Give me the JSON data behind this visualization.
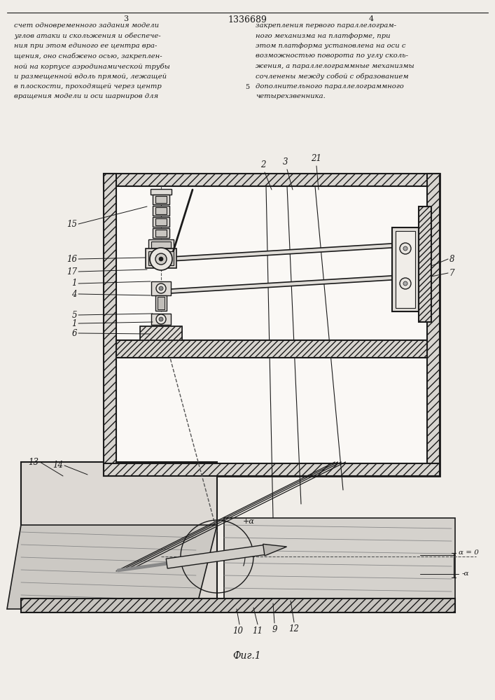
{
  "page_width": 7.07,
  "page_height": 10.0,
  "dpi": 100,
  "bg_color": "#f0ede8",
  "line_color": "#1a1a1a",
  "text_color": "#1a1a1a",
  "patent_number": "1336689",
  "fig_label": "Фиг.1",
  "left_text": [
    "счет одновременного задания модели",
    "углов атаки и скольжения и обеспече-",
    "ния при этом единого ее центра вра-",
    "щения, оно снабжено осью, закреплен-",
    "ной на корпусе аэродинамической трубы",
    "и размещенной вдоль прямой, лежащей",
    "в плоскости, проходящей через центр",
    "вращения модели и оси шарниров для"
  ],
  "right_text": [
    "закрепления первого параллелограм-",
    "ного механизма на платформе, при",
    "этом платформа установлена на оси с",
    "возможностью поворота по углу сколь-",
    "жения, а параллелограммные механизмы",
    "сочленены между собой с образованием",
    "дополнительного параллелограммного",
    "четырехзвенника."
  ]
}
